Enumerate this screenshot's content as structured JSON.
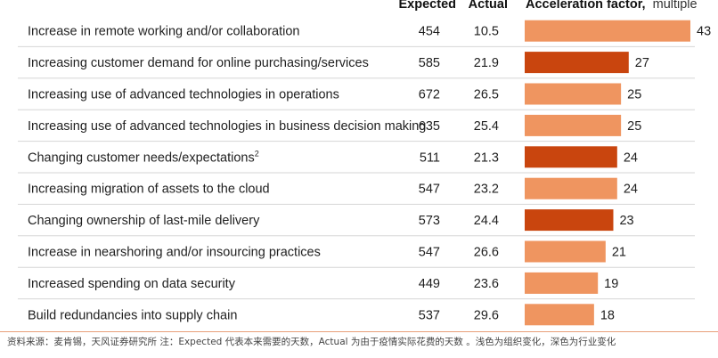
{
  "chart_data": {
    "type": "bar",
    "orientation": "horizontal",
    "headers": {
      "expected": "Expected",
      "actual": "Actual",
      "factor": "Acceleration factor,",
      "factor_unit": "multiple"
    },
    "rows": [
      {
        "label": "Increase in remote working and/or collaboration",
        "sup": "",
        "expected": "454",
        "actual": "10.5",
        "factor": 43,
        "category": "organization"
      },
      {
        "label": "Increasing customer demand for online purchasing/services",
        "sup": "",
        "expected": "585",
        "actual": "21.9",
        "factor": 27,
        "category": "industry"
      },
      {
        "label": "Increasing use of advanced technologies in operations",
        "sup": "",
        "expected": "672",
        "actual": "26.5",
        "factor": 25,
        "category": "organization"
      },
      {
        "label": "Increasing use of advanced technologies in business decision making",
        "sup": "",
        "expected": "635",
        "actual": "25.4",
        "factor": 25,
        "category": "organization"
      },
      {
        "label": "Changing customer needs/expectations",
        "sup": "2",
        "expected": "511",
        "actual": "21.3",
        "factor": 24,
        "category": "industry"
      },
      {
        "label": "Increasing migration of assets to the cloud",
        "sup": "",
        "expected": "547",
        "actual": "23.2",
        "factor": 24,
        "category": "organization"
      },
      {
        "label": "Changing ownership of last-mile delivery",
        "sup": "",
        "expected": "573",
        "actual": "24.4",
        "factor": 23,
        "category": "industry"
      },
      {
        "label": "Increase in nearshoring and/or insourcing practices",
        "sup": "",
        "expected": "547",
        "actual": "26.6",
        "factor": 21,
        "category": "organization"
      },
      {
        "label": "Increased spending on data security",
        "sup": "",
        "expected": "449",
        "actual": "23.6",
        "factor": 19,
        "category": "organization"
      },
      {
        "label": "Build redundancies into supply chain",
        "sup": "",
        "expected": "537",
        "actual": "29.6",
        "factor": 18,
        "category": "organization"
      }
    ],
    "xlim": [
      0,
      43
    ],
    "colors": {
      "organization": "#ef9560",
      "industry": "#c9450e"
    }
  },
  "footer": "资料来源：麦肯锡，天风证券研究所 注：Expected 代表本来需要的天数，Actual 为由于疫情实际花费的天数 。浅色为组织变化，深色为行业变化"
}
